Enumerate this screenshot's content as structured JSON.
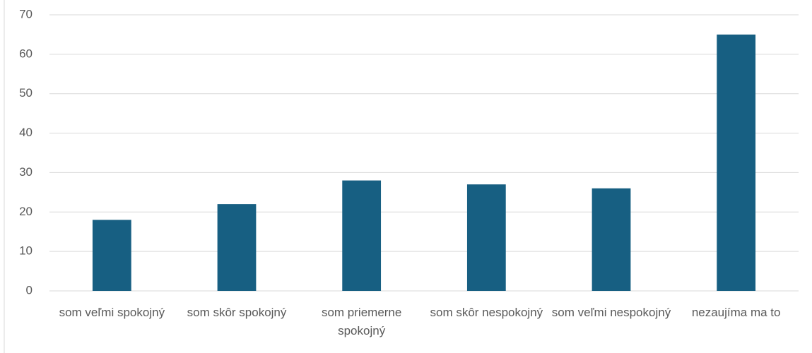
{
  "chart_data": {
    "type": "bar",
    "categories": [
      "som veľmi spokojný",
      "som skôr spokojný",
      "som priemerne spokojný",
      "som skôr nespokojný",
      "som veľmi nespokojný",
      "nezaujíma ma to"
    ],
    "values": [
      18,
      22,
      28,
      27,
      26,
      65
    ],
    "color": "#175f82",
    "ylim": [
      0,
      70
    ],
    "yticks": [
      0,
      10,
      20,
      30,
      40,
      50,
      60,
      70
    ],
    "grid": true
  }
}
